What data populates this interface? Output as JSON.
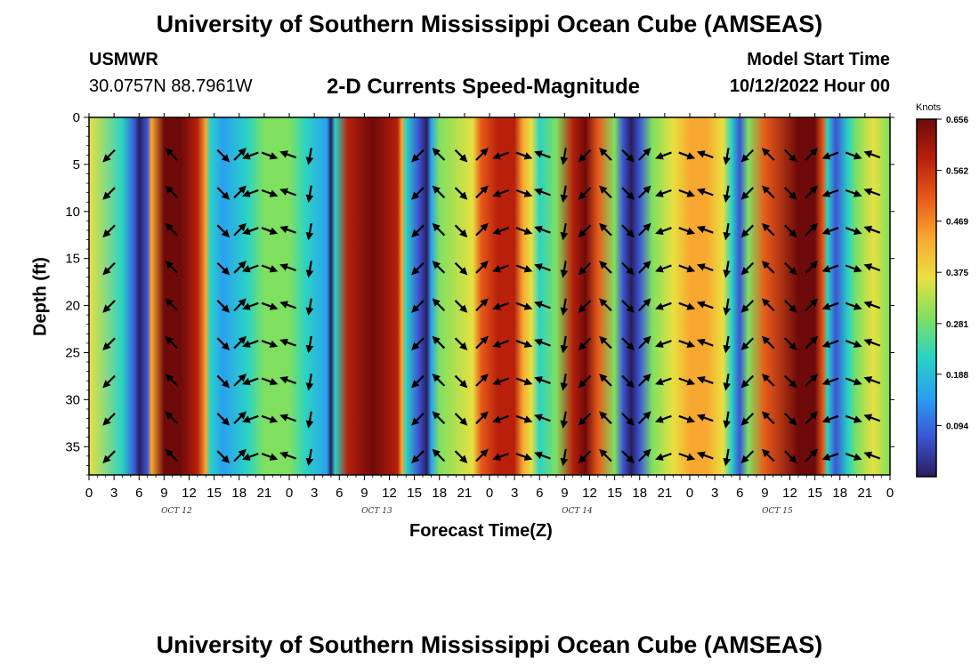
{
  "header": {
    "title": "University of Southern Mississippi Ocean Cube (AMSEAS)",
    "station_name": "USMWR",
    "station_coords": "30.0757N  88.7961W",
    "chart_title": "2-D Currents Speed-Magnitude",
    "model_start_label": "Model Start Time",
    "model_start_value": "10/12/2022 Hour 00"
  },
  "footer": {
    "title": "University of Southern Mississippi Ocean Cube (AMSEAS)"
  },
  "colors": {
    "palette": [
      "#2a1e5c",
      "#3b55d6",
      "#2aa0f0",
      "#2ad3c4",
      "#7fe060",
      "#e8e040",
      "#f8a830",
      "#e85a1a",
      "#b8200c",
      "#6e0a0a"
    ]
  },
  "chart_data": {
    "type": "heatmap",
    "title": "2-D Currents Speed-Magnitude",
    "xlabel": "Forecast Time(Z)",
    "ylabel": "Depth (ft)",
    "x_hours_range": [
      0,
      96
    ],
    "x_tick_step_hours": 3,
    "x_tick_labels": [
      "0",
      "3",
      "6",
      "9",
      "12",
      "15",
      "18",
      "21",
      "0",
      "3",
      "6",
      "9",
      "12",
      "15",
      "18",
      "21",
      "0",
      "3",
      "6",
      "9",
      "12",
      "15",
      "18",
      "21",
      "0",
      "3",
      "6",
      "9",
      "12",
      "15",
      "18",
      "21",
      "0"
    ],
    "date_labels": [
      {
        "text": "OCT 12",
        "hour": 10.5
      },
      {
        "text": "OCT 13",
        "hour": 34.5
      },
      {
        "text": "OCT 14",
        "hour": 58.5
      },
      {
        "text": "OCT 15",
        "hour": 82.5
      }
    ],
    "y_depth_range_ft": [
      0,
      38
    ],
    "y_tick_labels": [
      "0",
      "5",
      "10",
      "15",
      "20",
      "25",
      "30",
      "35"
    ],
    "y_tick_values": [
      0,
      5,
      10,
      15,
      20,
      25,
      30,
      35
    ],
    "colorbar": {
      "unit": "Knots",
      "range": [
        0.0,
        0.656
      ],
      "tick_labels": [
        "0.656",
        "0.562",
        "0.469",
        "0.375",
        "0.281",
        "0.188",
        "0.094"
      ],
      "tick_values": [
        0.656,
        0.562,
        0.469,
        0.375,
        0.281,
        0.188,
        0.094
      ]
    },
    "speed_profile_hours": [
      0,
      4,
      5.5,
      6,
      7,
      7.5,
      9,
      11,
      13,
      14,
      14.5,
      16,
      19,
      21,
      24,
      26,
      28.5,
      29,
      29.5,
      31,
      34,
      37,
      37.5,
      38,
      39.5,
      40.5,
      41,
      42,
      46,
      47,
      49,
      51,
      52,
      53,
      54,
      56,
      58,
      59.5,
      61,
      63,
      64,
      65,
      66,
      67.5,
      70,
      72,
      74,
      76,
      77,
      78,
      79,
      81,
      85,
      87,
      88,
      88.5,
      89.5,
      91,
      92,
      94,
      96
    ],
    "speed_profile_knots": [
      0.36,
      0.22,
      0.1,
      0.04,
      0.12,
      0.4,
      0.6,
      0.62,
      0.58,
      0.42,
      0.2,
      0.14,
      0.24,
      0.32,
      0.31,
      0.25,
      0.14,
      0.05,
      0.2,
      0.56,
      0.63,
      0.58,
      0.42,
      0.25,
      0.12,
      0.05,
      0.15,
      0.28,
      0.38,
      0.47,
      0.56,
      0.54,
      0.42,
      0.35,
      0.22,
      0.3,
      0.58,
      0.6,
      0.5,
      0.3,
      0.1,
      0.03,
      0.12,
      0.3,
      0.38,
      0.44,
      0.42,
      0.33,
      0.22,
      0.1,
      0.28,
      0.5,
      0.64,
      0.62,
      0.48,
      0.2,
      0.07,
      0.2,
      0.3,
      0.35,
      0.3
    ],
    "arrow_hours": [
      2.5,
      10,
      16,
      18,
      19.5,
      21.5,
      24,
      26.5,
      39.5,
      42,
      44.5,
      47,
      49.5,
      52,
      54.5,
      57,
      59.5,
      62,
      64.5,
      66.5,
      69,
      71.5,
      74,
      76.5,
      79,
      81.5,
      84,
      86.5,
      89,
      91.5,
      94
    ],
    "arrow_depths_ft": [
      4,
      8,
      12,
      16,
      20,
      24,
      28,
      32,
      36
    ]
  }
}
